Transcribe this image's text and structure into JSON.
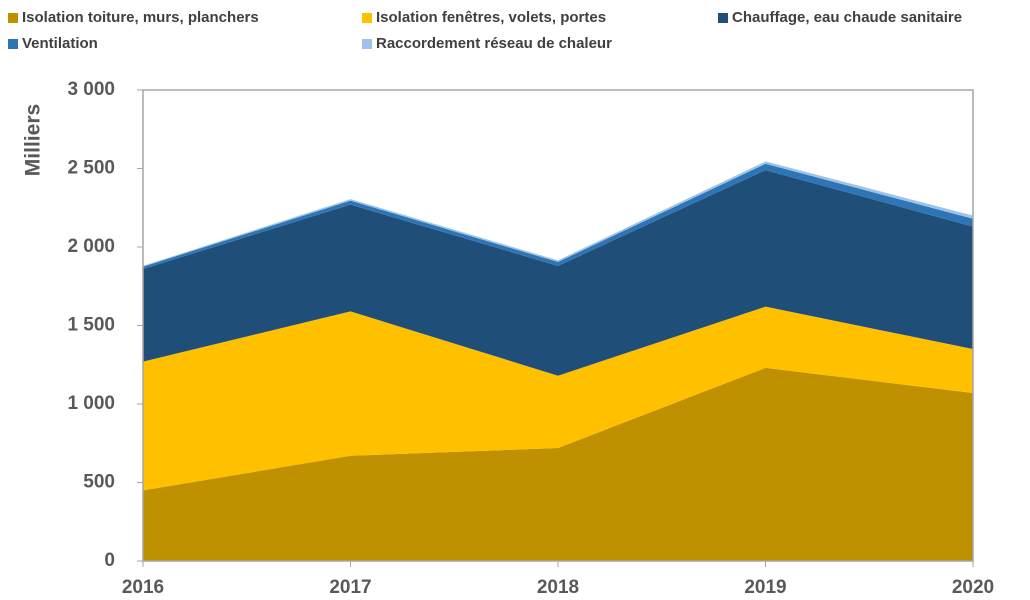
{
  "chart_data": {
    "type": "stacked_area",
    "x": [
      2016,
      2017,
      2018,
      2019,
      2020
    ],
    "xlim": [
      2016,
      2020
    ],
    "xticks": [
      2016,
      2017,
      2018,
      2019,
      2020
    ],
    "ylabel": "Milliers",
    "ylim": [
      0,
      3000
    ],
    "yticks": [
      0,
      500,
      {
        "value": 1000,
        "label": "1 000"
      },
      {
        "value": 1500,
        "label": "1 500"
      },
      {
        "value": 2000,
        "label": "2 000"
      },
      {
        "value": 2500,
        "label": "2 500"
      },
      {
        "value": 3000,
        "label": "3 000"
      }
    ],
    "grid": false,
    "legend": "top",
    "series": [
      {
        "name": "Isolation toiture, murs, planchers",
        "color": "#bf9000",
        "values": [
          450,
          670,
          720,
          1230,
          1070
        ]
      },
      {
        "name": "Isolation fenêtres, volets, portes",
        "color": "#ffc000",
        "values": [
          820,
          920,
          460,
          390,
          280
        ]
      },
      {
        "name": "Chauffage, eau chaude sanitaire",
        "color": "#1f4e79",
        "values": [
          590,
          680,
          700,
          870,
          780
        ]
      },
      {
        "name": "Ventilation",
        "color": "#2e75b6",
        "values": [
          15,
          25,
          25,
          40,
          50
        ]
      },
      {
        "name": "Raccordement réseau de chaleur",
        "color": "#9dc3e6",
        "values": [
          5,
          10,
          10,
          15,
          20
        ]
      }
    ]
  }
}
